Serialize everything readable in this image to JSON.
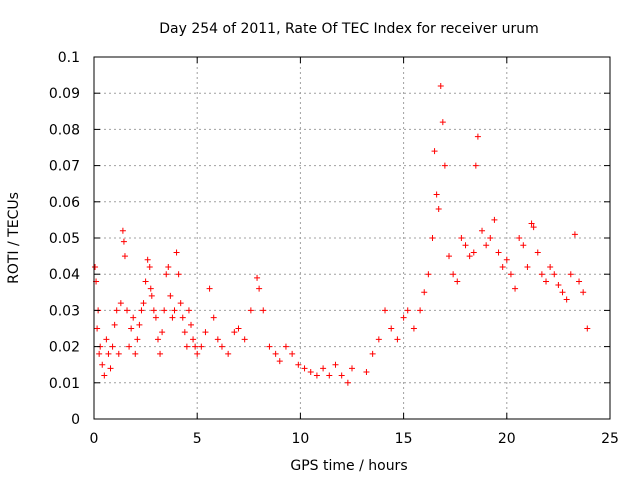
{
  "chart_data": {
    "type": "scatter",
    "title": "Day 254 of 2011, Rate Of TEC Index for receiver urum",
    "xlabel": "GPS time / hours",
    "ylabel": "ROTI / TECUs",
    "xlim": [
      0,
      25
    ],
    "ylim": [
      0,
      0.1
    ],
    "xticks": [
      0,
      5,
      10,
      15,
      20,
      25
    ],
    "xtick_labels": [
      "0",
      "5",
      "10",
      "15",
      "20",
      "25"
    ],
    "yticks": [
      0,
      0.01,
      0.02,
      0.03,
      0.04,
      0.05,
      0.06,
      0.07,
      0.08,
      0.09,
      0.1
    ],
    "ytick_labels": [
      "0",
      "0.01",
      "0.02",
      "0.03",
      "0.04",
      "0.05",
      "0.06",
      "0.07",
      "0.08",
      "0.09",
      "0.1"
    ],
    "grid": true,
    "marker": "+",
    "color": "#ff0000",
    "series": [
      {
        "x": [
          0.05,
          0.1,
          0.15,
          0.2,
          0.25,
          0.3,
          0.4,
          0.5,
          0.6,
          0.7,
          0.8,
          0.9,
          1.0,
          1.1,
          1.2,
          1.3,
          1.4,
          1.45,
          1.5,
          1.6,
          1.7,
          1.8,
          1.9,
          2.0,
          2.1,
          2.2,
          2.3,
          2.4,
          2.5,
          2.6,
          2.7,
          2.75,
          2.8,
          2.9,
          3.0,
          3.1,
          3.2,
          3.3,
          3.4,
          3.5,
          3.6,
          3.7,
          3.8,
          3.9,
          4.0,
          4.1,
          4.2,
          4.3,
          4.4,
          4.5,
          4.6,
          4.7,
          4.8,
          4.9,
          5.0,
          5.2,
          5.4,
          5.6,
          5.8,
          6.0,
          6.2,
          6.5,
          6.8,
          7.0,
          7.3,
          7.6,
          7.9,
          8.0,
          8.2,
          8.5,
          8.8,
          9.0,
          9.3,
          9.6,
          9.9,
          10.2,
          10.5,
          10.8,
          11.1,
          11.4,
          11.7,
          12.0,
          12.3,
          12.5,
          13.2,
          13.5,
          13.8,
          14.1,
          14.4,
          14.7,
          15.0,
          15.2,
          15.5,
          15.8,
          16.0,
          16.2,
          16.4,
          16.5,
          16.6,
          16.7,
          16.8,
          16.9,
          17.0,
          17.2,
          17.4,
          17.6,
          17.8,
          18.0,
          18.2,
          18.4,
          18.5,
          18.6,
          18.8,
          19.0,
          19.2,
          19.4,
          19.6,
          19.8,
          20.0,
          20.2,
          20.4,
          20.6,
          20.8,
          21.0,
          21.2,
          21.3,
          21.5,
          21.7,
          21.9,
          22.1,
          22.3,
          22.5,
          22.7,
          22.9,
          23.1,
          23.3,
          23.5,
          23.7,
          23.9
        ],
        "y": [
          0.042,
          0.038,
          0.025,
          0.03,
          0.018,
          0.02,
          0.015,
          0.012,
          0.022,
          0.018,
          0.014,
          0.02,
          0.026,
          0.03,
          0.018,
          0.032,
          0.052,
          0.049,
          0.045,
          0.03,
          0.02,
          0.025,
          0.028,
          0.018,
          0.022,
          0.026,
          0.03,
          0.032,
          0.038,
          0.044,
          0.042,
          0.036,
          0.034,
          0.03,
          0.028,
          0.022,
          0.018,
          0.024,
          0.03,
          0.04,
          0.042,
          0.034,
          0.028,
          0.03,
          0.046,
          0.04,
          0.032,
          0.028,
          0.024,
          0.02,
          0.03,
          0.026,
          0.022,
          0.02,
          0.018,
          0.02,
          0.024,
          0.036,
          0.028,
          0.022,
          0.02,
          0.018,
          0.024,
          0.025,
          0.022,
          0.03,
          0.039,
          0.036,
          0.03,
          0.02,
          0.018,
          0.016,
          0.02,
          0.018,
          0.015,
          0.014,
          0.013,
          0.012,
          0.014,
          0.012,
          0.015,
          0.012,
          0.01,
          0.014,
          0.013,
          0.018,
          0.022,
          0.03,
          0.025,
          0.022,
          0.028,
          0.03,
          0.025,
          0.03,
          0.035,
          0.04,
          0.05,
          0.074,
          0.062,
          0.058,
          0.092,
          0.082,
          0.07,
          0.045,
          0.04,
          0.038,
          0.05,
          0.048,
          0.045,
          0.046,
          0.07,
          0.078,
          0.052,
          0.048,
          0.05,
          0.055,
          0.046,
          0.042,
          0.044,
          0.04,
          0.036,
          0.05,
          0.048,
          0.042,
          0.054,
          0.053,
          0.046,
          0.04,
          0.038,
          0.042,
          0.04,
          0.037,
          0.035,
          0.033,
          0.04,
          0.051,
          0.038,
          0.035,
          0.025
        ]
      }
    ]
  }
}
